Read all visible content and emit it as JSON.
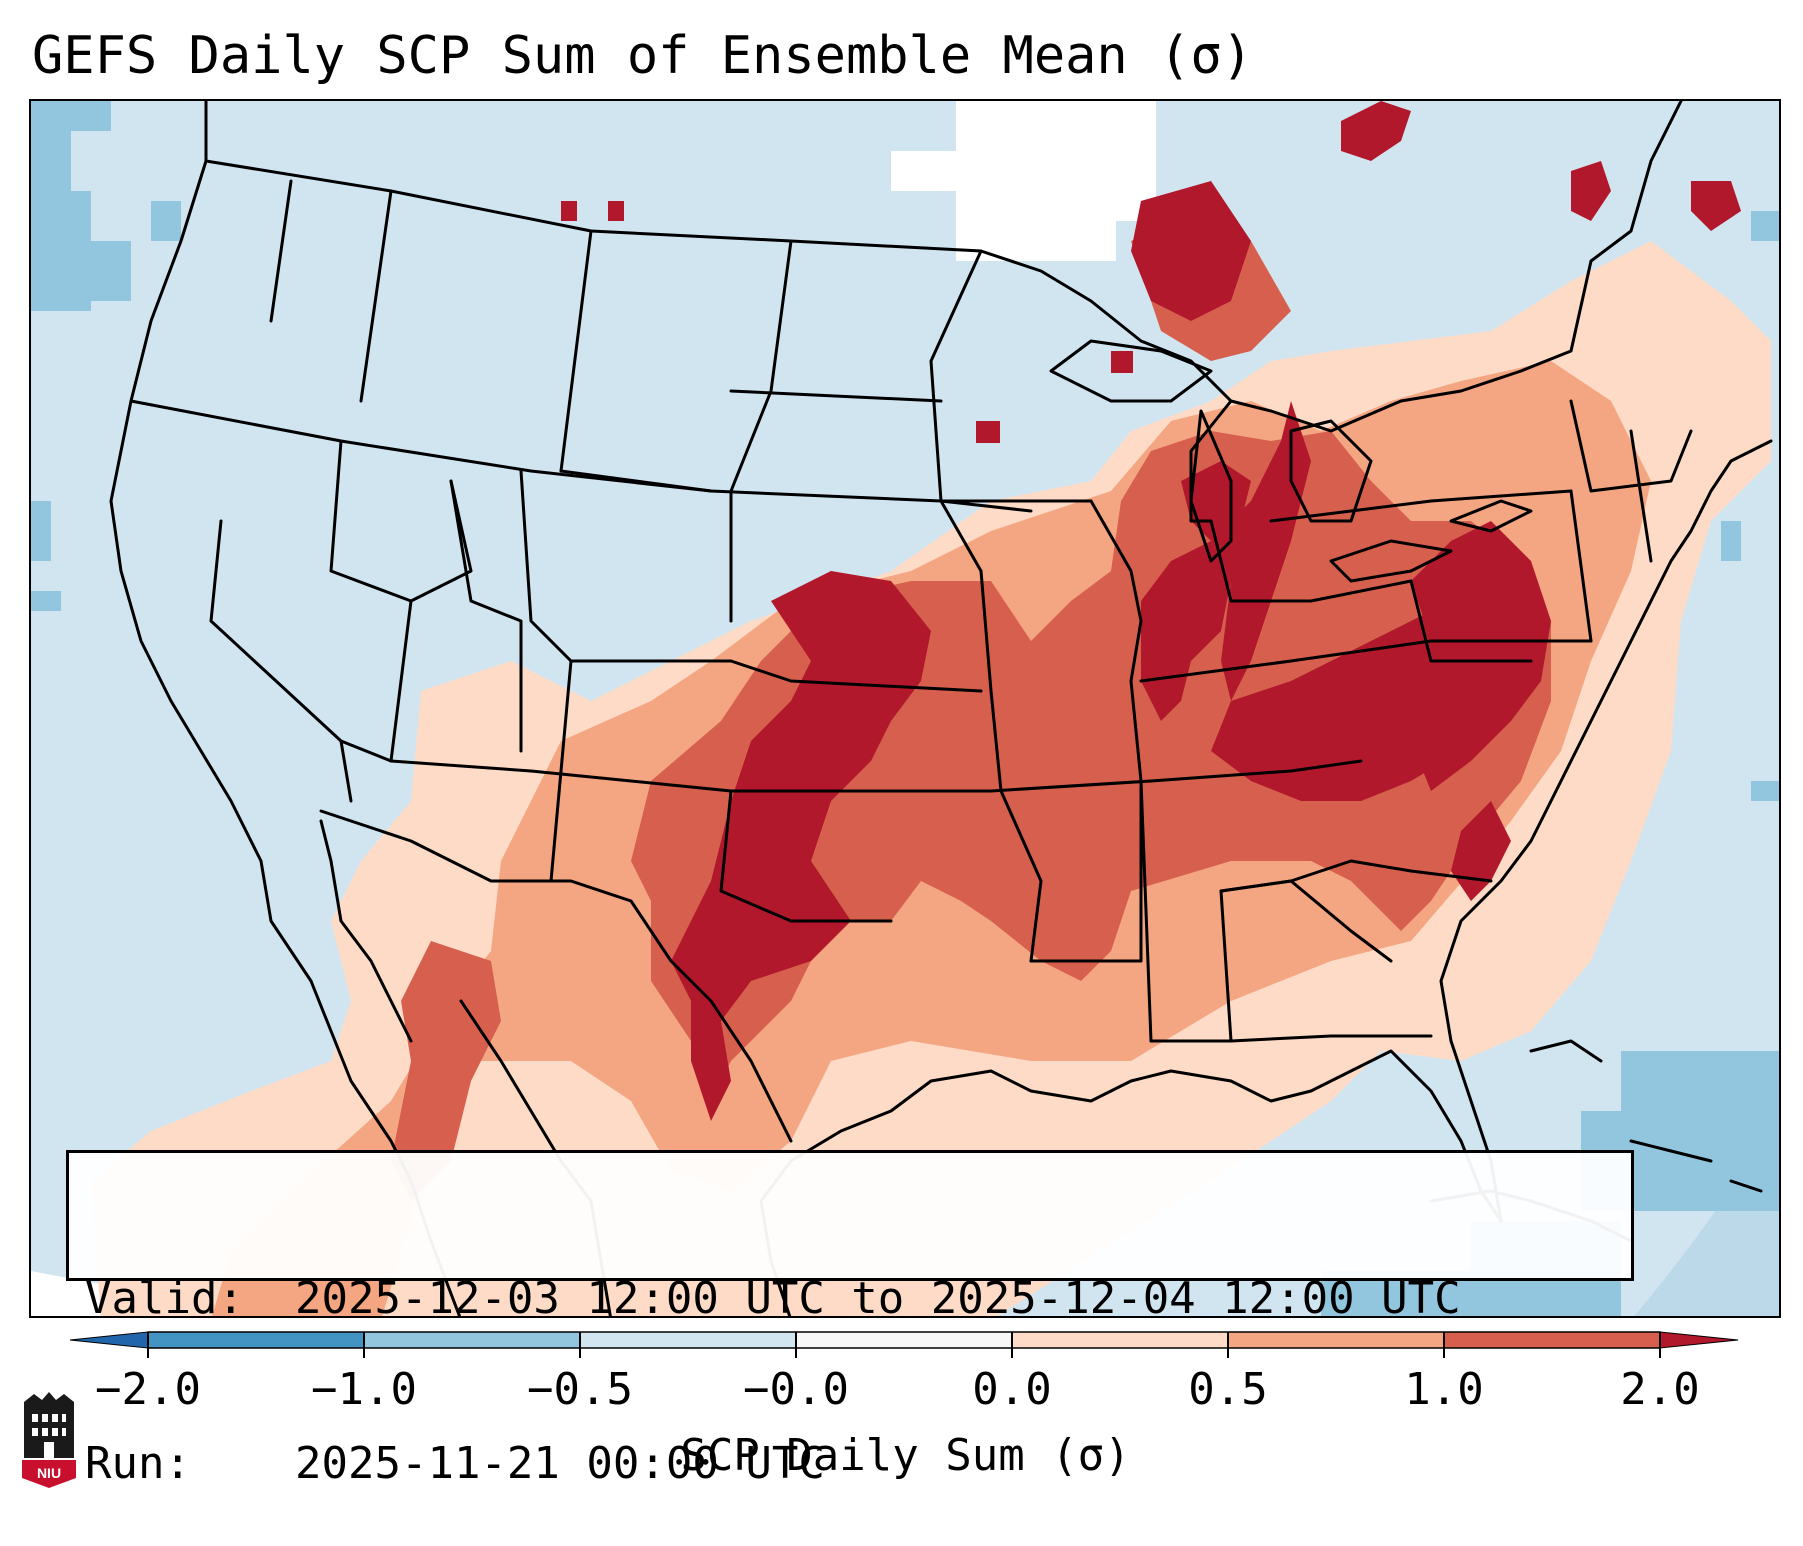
{
  "title": "GEFS Daily SCP Sum of Ensemble Mean (σ)",
  "info": {
    "valid_label": "Valid:",
    "valid_value": "2025-12-03 12:00 UTC to 2025-12-04 12:00 UTC",
    "run_label": "Run:",
    "run_value": "2025-11-21 00:00 UTC"
  },
  "colorbar": {
    "label": "SCP Daily Sum (σ)",
    "ticks": [
      "−2.0",
      "−1.0",
      "−0.5",
      "−0.0",
      "0.0",
      "0.5",
      "1.0",
      "2.0"
    ],
    "bins": [
      {
        "from": -2.0,
        "to": -1.0,
        "color": "#4393c3"
      },
      {
        "from": -1.0,
        "to": -0.5,
        "color": "#92c5de"
      },
      {
        "from": -0.5,
        "to": -0.0,
        "color": "#d1e5f0"
      },
      {
        "from": -0.0,
        "to": 0.0,
        "color": "#f7f7f7"
      },
      {
        "from": 0.0,
        "to": 0.5,
        "color": "#fddbc7"
      },
      {
        "from": 0.5,
        "to": 1.0,
        "color": "#f4a582"
      },
      {
        "from": 1.0,
        "to": 2.0,
        "color": "#d6604d"
      }
    ],
    "under_color": "#2166ac",
    "over_color": "#b2182b"
  },
  "colors": {
    "background": "#d1e5f0",
    "missing": "#ffffff",
    "weak_neg": "#92c5de",
    "light_pos": "#fddbc7",
    "mid_pos": "#f4a582",
    "high_pos": "#d6604d",
    "extreme_pos": "#b2182b",
    "state_lines": "#000000"
  },
  "logo": {
    "text": "NIU",
    "icon": "niu-logo-icon"
  }
}
